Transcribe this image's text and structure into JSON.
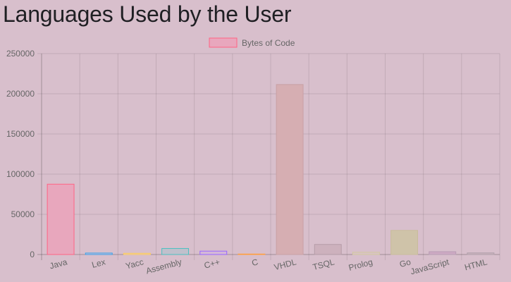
{
  "page": {
    "title": "Languages Used by the User"
  },
  "chart_data": {
    "type": "bar",
    "title": "",
    "xlabel": "",
    "ylabel": "",
    "ylim": [
      0,
      250000
    ],
    "yticks": [
      0,
      50000,
      100000,
      150000,
      200000,
      250000
    ],
    "grid": true,
    "legend_position": "top",
    "categories": [
      "Java",
      "Lex",
      "Yacc",
      "Assembly",
      "C++",
      "C",
      "VHDL",
      "TSQL",
      "Prolog",
      "Go",
      "JavaScript",
      "HTML"
    ],
    "series": [
      {
        "name": "Bytes of Code",
        "values": [
          87500,
          1800,
          1500,
          7500,
          4200,
          600,
          211500,
          12500,
          2800,
          30000,
          3500,
          2000
        ]
      }
    ],
    "colors": [
      {
        "fill": "#e8a7bd",
        "stroke": "#ff6384"
      },
      {
        "fill": "#c9bfd6",
        "stroke": "#36a2eb"
      },
      {
        "fill": "#e2c4c4",
        "stroke": "#ffce56"
      },
      {
        "fill": "#c0c0cc",
        "stroke": "#4bc0c0"
      },
      {
        "fill": "#d4b8d8",
        "stroke": "#9966ff"
      },
      {
        "fill": "#dcc0c4",
        "stroke": "#ff9f40"
      },
      {
        "fill": "#d6aeb2",
        "stroke": "#c8a0a4"
      },
      {
        "fill": "#cdb1bd",
        "stroke": "#b59ca8"
      },
      {
        "fill": "#d9c3c3",
        "stroke": "#d2c8a0"
      },
      {
        "fill": "#cfc3a9",
        "stroke": "#c8bc9c"
      },
      {
        "fill": "#cdaac3",
        "stroke": "#b89cb4"
      },
      {
        "fill": "#cbb3bd",
        "stroke": "#b0a0aa"
      }
    ],
    "legend_color": {
      "fill": "#e8a7bd",
      "stroke": "#ff6384"
    }
  }
}
